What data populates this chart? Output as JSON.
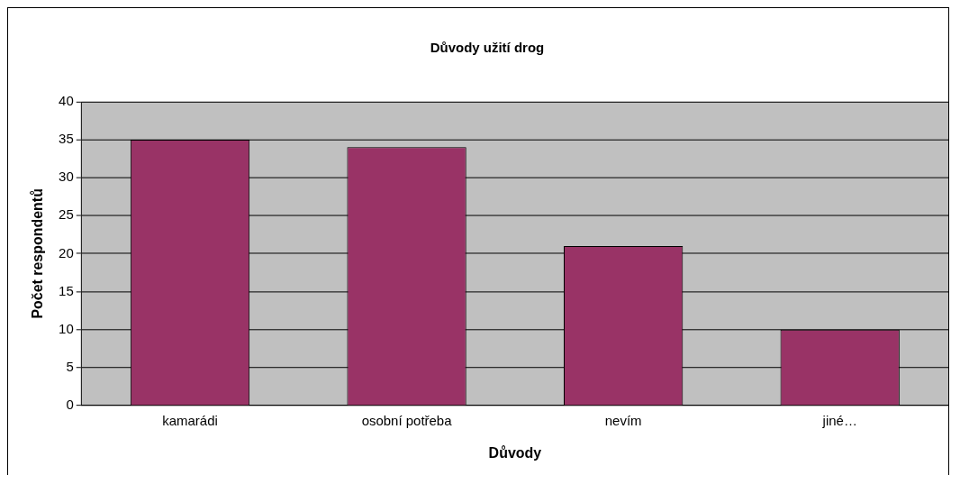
{
  "chart_data": {
    "type": "bar",
    "title": "Důvody užití drog",
    "xlabel": "Důvody",
    "ylabel": "Počet respondentů",
    "categories": [
      "kamarádi",
      "osobní potřeba",
      "nevím",
      "jiné…"
    ],
    "values": [
      35,
      34,
      21,
      10
    ],
    "color": "#993366",
    "ylim": [
      0,
      40
    ],
    "yticks": [
      0,
      5,
      10,
      15,
      20,
      25,
      30,
      35,
      40
    ],
    "grid": "y",
    "legend": false
  }
}
